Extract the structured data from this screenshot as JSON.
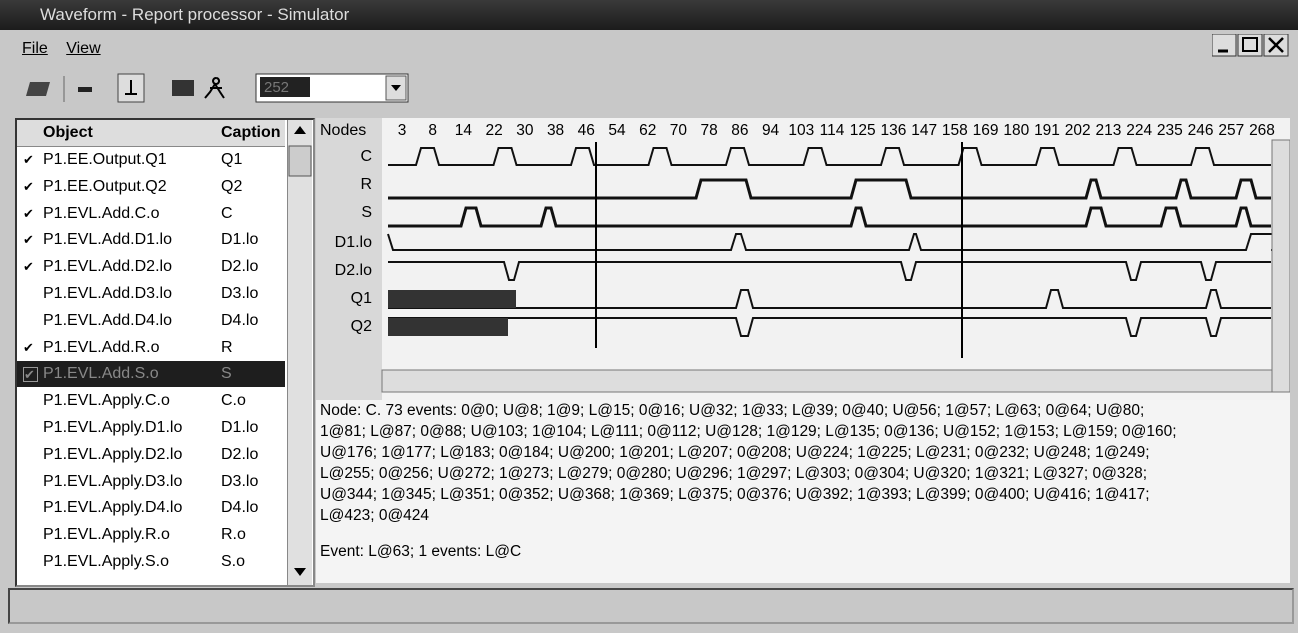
{
  "window": {
    "title": "Waveform - Report processor - Simulator",
    "menu": [
      "File",
      "View"
    ],
    "toolbar_combo": "252"
  },
  "object_list": {
    "headers": [
      "Object",
      "Caption"
    ],
    "rows": [
      {
        "object": "P1.EE.Output.Q1",
        "caption": "Q1",
        "checked": true
      },
      {
        "object": "P1.EE.Output.Q2",
        "caption": "Q2",
        "checked": true
      },
      {
        "object": "P1.EVL.Add.C.o",
        "caption": "C",
        "checked": true
      },
      {
        "object": "P1.EVL.Add.D1.lo",
        "caption": "D1.lo",
        "checked": true
      },
      {
        "object": "P1.EVL.Add.D2.lo",
        "caption": "D2.lo",
        "checked": true
      },
      {
        "object": "P1.EVL.Add.D3.lo",
        "caption": "D3.lo",
        "checked": false
      },
      {
        "object": "P1.EVL.Add.D4.lo",
        "caption": "D4.lo",
        "checked": false
      },
      {
        "object": "P1.EVL.Add.R.o",
        "caption": "R",
        "checked": true
      },
      {
        "object": "P1.EVL.Add.S.o",
        "caption": "S",
        "checked": true,
        "selected": true
      },
      {
        "object": "P1.EVL.Apply.C.o",
        "caption": "C.o",
        "checked": false
      },
      {
        "object": "P1.EVL.Apply.D1.lo",
        "caption": "D1.lo",
        "checked": false
      },
      {
        "object": "P1.EVL.Apply.D2.lo",
        "caption": "D2.lo",
        "checked": false
      },
      {
        "object": "P1.EVL.Apply.D3.lo",
        "caption": "D3.lo",
        "checked": false
      },
      {
        "object": "P1.EVL.Apply.D4.lo",
        "caption": "D4.lo",
        "checked": false
      },
      {
        "object": "P1.EVL.Apply.R.o",
        "caption": "R.o",
        "checked": false
      },
      {
        "object": "P1.EVL.Apply.S.o",
        "caption": "S.o",
        "checked": false
      }
    ]
  },
  "waveform": {
    "nodes_label": "Nodes",
    "times": [
      3,
      8,
      14,
      22,
      30,
      38,
      46,
      54,
      62,
      70,
      78,
      86,
      94,
      103,
      114,
      125,
      136,
      147,
      158,
      169,
      180,
      191,
      202,
      213,
      224,
      235,
      246,
      257,
      268
    ],
    "signals": [
      "C",
      "R",
      "S",
      "D1.lo",
      "D2.lo",
      "Q1",
      "Q2"
    ]
  },
  "info": {
    "lines": [
      "Node: C. 73 events: 0@0; U@8; 1@9; L@15; 0@16; U@32; 1@33; L@39; 0@40; U@56; 1@57; L@63; 0@64; U@80;",
      "1@81; L@87; 0@88; U@103; 1@104; L@111; 0@112; U@128; 1@129; L@135; 0@136; U@152; 1@153; L@159; 0@160;",
      "U@176; 1@177; L@183; 0@184; U@200; 1@201; L@207; 0@208; U@224; 1@225; L@231; 0@232; U@248; 1@249;",
      "L@255; 0@256; U@272; 1@273; L@279; 0@280; U@296; 1@297; L@303; 0@304; U@320; 1@321; L@327; 0@328;",
      "U@344; 1@345; L@351; 0@352; U@368; 1@369; L@375; 0@376; U@392; 1@393; L@399; 0@400; U@416; 1@417;",
      "L@423; 0@424"
    ],
    "event": "Event: L@63; 1 events: L@C"
  }
}
